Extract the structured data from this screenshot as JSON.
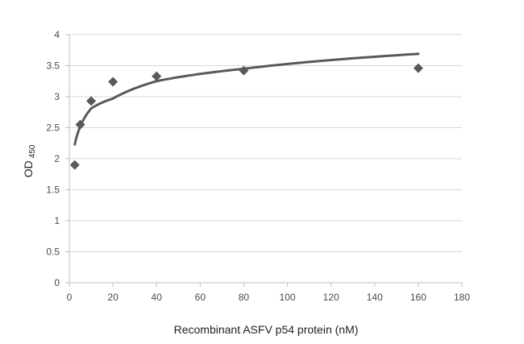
{
  "chart_data": {
    "type": "scatter",
    "title": "",
    "xlabel": "Recombinant ASFV p54 protein (nM)",
    "ylabel": "OD",
    "ylabel_subscript": "450",
    "xlim": [
      0,
      180
    ],
    "ylim": [
      0,
      4
    ],
    "x_ticks": [
      0,
      20,
      40,
      60,
      80,
      100,
      120,
      140,
      160,
      180
    ],
    "y_ticks": [
      0,
      0.5,
      1,
      1.5,
      2,
      2.5,
      3,
      3.5,
      4
    ],
    "x_tick_labels": [
      "0",
      "20",
      "40",
      "60",
      "80",
      "100",
      "120",
      "140",
      "160",
      "180"
    ],
    "y_tick_labels": [
      "0",
      "0.5",
      "1",
      "1.5",
      "2",
      "2.5",
      "3",
      "3.5",
      "4"
    ],
    "grid": "horizontal",
    "legend": "none",
    "marker": "diamond",
    "series": [
      {
        "points": [
          {
            "x": 2.5,
            "y": 1.9
          },
          {
            "x": 5,
            "y": 2.55
          },
          {
            "x": 10,
            "y": 2.93
          },
          {
            "x": 20,
            "y": 3.24
          },
          {
            "x": 40,
            "y": 3.33
          },
          {
            "x": 80,
            "y": 3.42
          },
          {
            "x": 160,
            "y": 3.46
          }
        ]
      }
    ],
    "trendline": {
      "type": "logarithmic",
      "x_range": [
        2.5,
        160
      ],
      "points": [
        {
          "x": 2.5,
          "y": 2.23
        },
        {
          "x": 5,
          "y": 2.52
        },
        {
          "x": 10,
          "y": 2.81
        },
        {
          "x": 20,
          "y": 2.97
        },
        {
          "x": 40,
          "y": 3.25
        },
        {
          "x": 80,
          "y": 3.45
        },
        {
          "x": 160,
          "y": 3.69
        }
      ]
    },
    "colors": {
      "marker": "#595959",
      "trendline": "#595959",
      "grid": "#d9d9d9",
      "axis": "#bfbfbf",
      "text": "#4a4a4a"
    }
  }
}
